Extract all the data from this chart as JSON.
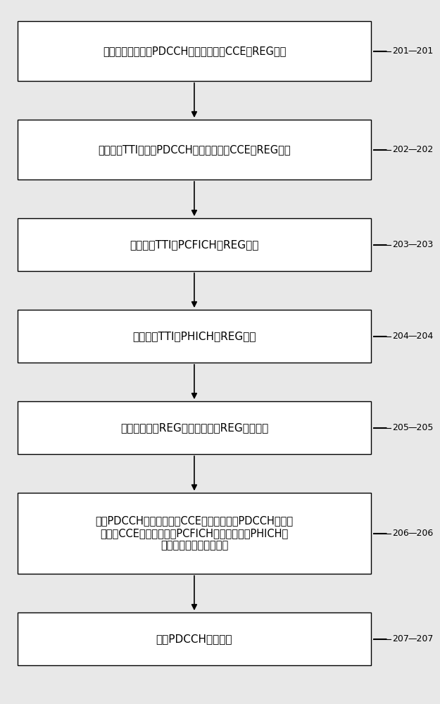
{
  "background_color": "#e8e8e8",
  "box_fill": "#ffffff",
  "box_edge": "#000000",
  "arrow_color": "#000000",
  "label_color": "#000000",
  "font_size": 11,
  "label_font_size": 10,
  "boxes": [
    {
      "id": "201",
      "label": "统计预设周期内的PDCCH的专有空间的CCE的REG数量",
      "tag": "201",
      "lines": [
        "统计预设周期内的PDCCH的专有空间的CCE的REG数量"
      ]
    },
    {
      "id": "202",
      "label": "计算当前TTI的所述PDCCH的公共空间的CCE的REG数量",
      "tag": "202",
      "lines": [
        "计算当前TTI的所述PDCCH的公共空间的CCE的REG数量"
      ]
    },
    {
      "id": "203",
      "label": "计算当前TTI的PCFICH的REG数量",
      "tag": "203",
      "lines": [
        "计算当前TTI的PCFICH的REG数量"
      ]
    },
    {
      "id": "204",
      "label": "计算当前TTI的PHICH的REG数量",
      "tag": "204",
      "lines": [
        "计算当前TTI的PHICH的REG数量"
      ]
    },
    {
      "id": "205",
      "label": "计算非周期性REG数量与周期性REG数量之和",
      "tag": "205",
      "lines": [
        "计算非周期性REG数量与周期性REG数量之和"
      ]
    },
    {
      "id": "206",
      "label": "计算PDCCH的专有空间的CCE的使用功率、PDCCH的公共\n空间的CCE的使用功率、PCFICH的使用功率、PHICH的\n使用功率与预留功率之和",
      "tag": "206",
      "lines": [
        "计算PDCCH的专有空间的CCE的使用功率、PDCCH的公共",
        "空间的CCE的使用功率、PCFICH的使用功率、PHICH的",
        "使用功率与预留功率之和"
      ]
    },
    {
      "id": "207",
      "label": "计算PDCCH的符号数",
      "tag": "207",
      "lines": [
        "计算PDCCH的符号数"
      ]
    }
  ]
}
